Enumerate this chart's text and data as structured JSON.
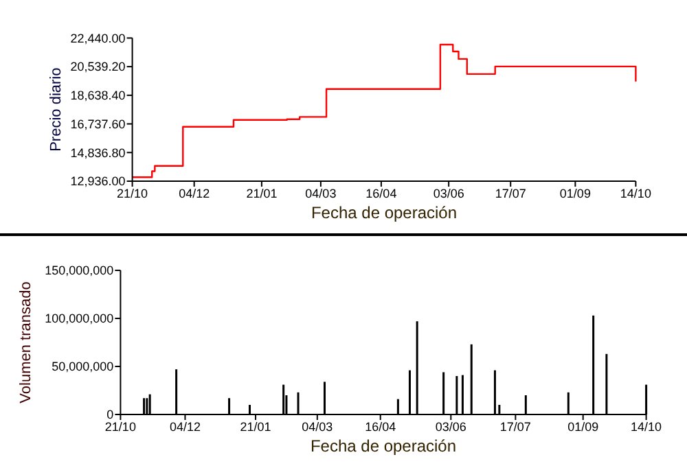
{
  "chart_data": [
    {
      "type": "step",
      "xlabel": "Fecha de operación",
      "ylabel": "Precio diario",
      "x": [
        "2006-10-21",
        "2006-11-04",
        "2006-11-06",
        "2006-11-26",
        "2007-01-01",
        "2007-02-08",
        "2007-02-17",
        "2007-03-08",
        "2007-05-28",
        "2007-06-06",
        "2007-06-10",
        "2007-06-16",
        "2007-07-06",
        "2007-10-14"
      ],
      "series": [
        {
          "color": "#ff0000",
          "values": [
            13200,
            13600,
            13950,
            16550,
            17000,
            17050,
            17200,
            19050,
            22000,
            21550,
            21050,
            20050,
            20550,
            19550
          ]
        }
      ],
      "xlim": [
        "2006-10-21",
        "2007-10-14"
      ],
      "xticks": [
        {
          "value": "2006-10-21",
          "label": "21/10"
        },
        {
          "value": "2006-12-04",
          "label": "04/12"
        },
        {
          "value": "2007-01-21",
          "label": "21/01"
        },
        {
          "value": "2007-03-04",
          "label": "04/03"
        },
        {
          "value": "2007-04-16",
          "label": "16/04"
        },
        {
          "value": "2007-06-03",
          "label": "03/06"
        },
        {
          "value": "2007-07-17",
          "label": "17/07"
        },
        {
          "value": "2007-09-01",
          "label": "01/09"
        },
        {
          "value": "2007-10-14",
          "label": "14/10"
        }
      ],
      "ylim": [
        12936,
        22440
      ],
      "yticks": [
        {
          "value": 12936,
          "label": "12,936.00"
        },
        {
          "value": 14836.8,
          "label": "14,836.80"
        },
        {
          "value": 16737.6,
          "label": "16,737.60"
        },
        {
          "value": 18638.4,
          "label": "18,638.40"
        },
        {
          "value": 20539.2,
          "label": "20,539.20"
        },
        {
          "value": 22440,
          "label": "22,440.00"
        }
      ],
      "grid": false
    },
    {
      "type": "bar",
      "xlabel": "Fecha de operación",
      "ylabel": "Volumen transado",
      "x": [
        "2006-11-06",
        "2006-11-08",
        "2006-11-10",
        "2006-11-28",
        "2007-01-03",
        "2007-01-17",
        "2007-02-09",
        "2007-02-11",
        "2007-02-19",
        "2007-03-09",
        "2007-04-28",
        "2007-05-06",
        "2007-05-11",
        "2007-05-29",
        "2007-06-07",
        "2007-06-11",
        "2007-06-17",
        "2007-07-03",
        "2007-07-06",
        "2007-07-24",
        "2007-08-22",
        "2007-09-08",
        "2007-09-17",
        "2007-10-14"
      ],
      "series": [
        {
          "color": "#000000",
          "values": [
            17000000,
            17000000,
            21000000,
            47000000,
            17000000,
            10000000,
            31000000,
            20000000,
            23000000,
            34000000,
            16000000,
            46000000,
            97000000,
            44000000,
            40000000,
            41000000,
            73000000,
            46000000,
            10000000,
            20000000,
            23000000,
            103000000,
            63000000,
            31000000
          ]
        }
      ],
      "xlim": [
        "2006-10-21",
        "2007-10-14"
      ],
      "xticks": [
        {
          "value": "2006-10-21",
          "label": "21/10"
        },
        {
          "value": "2006-12-04",
          "label": "04/12"
        },
        {
          "value": "2007-01-21",
          "label": "21/01"
        },
        {
          "value": "2007-03-04",
          "label": "04/03"
        },
        {
          "value": "2007-04-16",
          "label": "16/04"
        },
        {
          "value": "2007-06-03",
          "label": "03/06"
        },
        {
          "value": "2007-07-17",
          "label": "17/07"
        },
        {
          "value": "2007-09-01",
          "label": "01/09"
        },
        {
          "value": "2007-10-14",
          "label": "14/10"
        }
      ],
      "ylim": [
        0,
        150000000
      ],
      "yticks": [
        0,
        {
          "value": 50000000,
          "label": "50,000,000"
        },
        {
          "value": 100000000,
          "label": "100,000,000"
        },
        {
          "value": 150000000,
          "label": "150,000,000"
        }
      ],
      "grid": false
    }
  ]
}
